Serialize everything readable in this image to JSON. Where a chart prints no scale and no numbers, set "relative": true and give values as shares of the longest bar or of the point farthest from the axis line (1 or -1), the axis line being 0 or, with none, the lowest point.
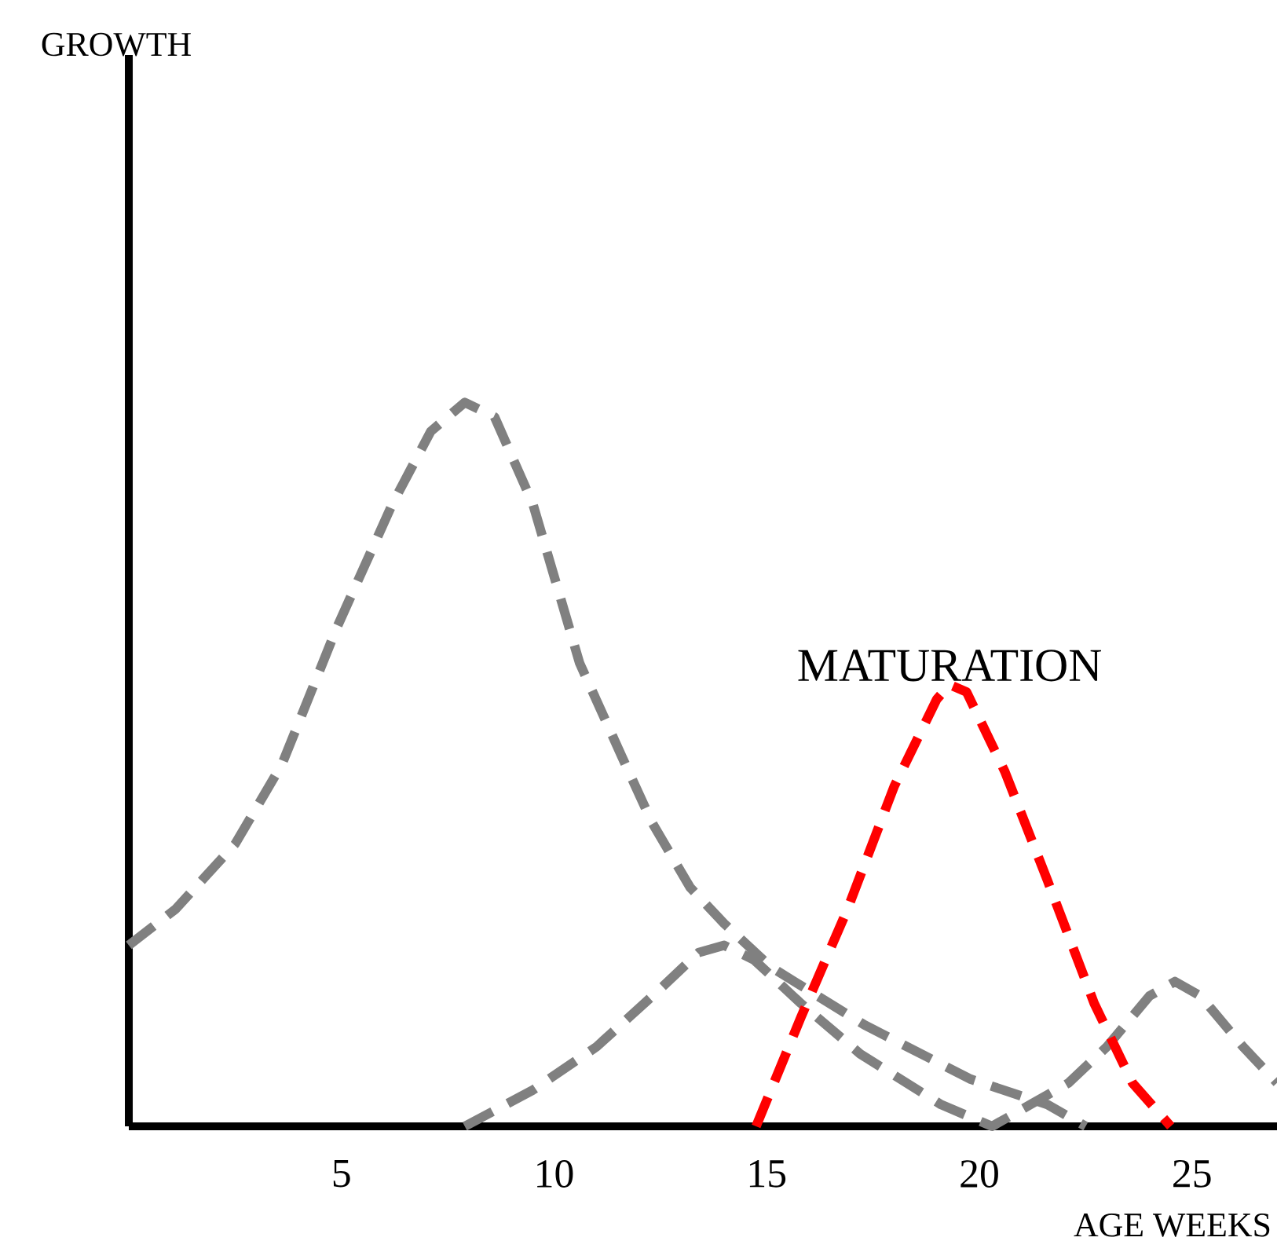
{
  "chart_data": {
    "type": "line",
    "relative": true,
    "xlabel": "AGE WEEKS",
    "xlim": [
      0,
      27
    ],
    "xticks": [
      5,
      10,
      15,
      20,
      25
    ],
    "tick_labels": "x",
    "line_style": "dashed",
    "marker": "none",
    "annotations": [
      "GROWTH",
      {
        "text": "MATURATION",
        "x": 19.3,
        "y": 0.61
      }
    ],
    "series": [
      {
        "color": "#808080",
        "x": [
          0,
          1.1,
          2.5,
          3.6,
          4.9,
          6.2,
          7.1,
          7.9,
          8.6,
          9.5,
          10.6,
          11.6,
          12.3,
          13.2,
          14.0,
          15.1,
          17.3,
          19.8,
          21.6,
          22.5
        ],
        "values": [
          0.25,
          0.3,
          0.39,
          0.5,
          0.69,
          0.86,
          0.96,
          1.0,
          0.98,
          0.86,
          0.64,
          0.51,
          0.42,
          0.33,
          0.28,
          0.22,
          0.14,
          0.065,
          0.03,
          0
        ]
      },
      {
        "color": "#808080",
        "x": [
          7.9,
          9.5,
          11.0,
          12.5,
          13.4,
          14.0,
          14.7,
          15.8,
          17.2,
          19.1,
          20.3,
          21.2,
          22.1,
          23.0,
          24.0,
          24.6,
          25.2,
          26.2,
          27.0
        ],
        "values": [
          0,
          0.05,
          0.11,
          0.19,
          0.24,
          0.25,
          0.23,
          0.17,
          0.1,
          0.03,
          0,
          0.03,
          0.06,
          0.11,
          0.18,
          0.2,
          0.18,
          0.11,
          0.06
        ]
      },
      {
        "color": "#ff0000",
        "x": [
          14.75,
          15.8,
          16.9,
          18.0,
          19.0,
          19.3,
          19.7,
          20.6,
          21.6,
          22.7,
          23.6,
          24.5
        ],
        "values": [
          0,
          0.15,
          0.3,
          0.47,
          0.59,
          0.61,
          0.6,
          0.49,
          0.34,
          0.17,
          0.06,
          0
        ]
      }
    ]
  }
}
